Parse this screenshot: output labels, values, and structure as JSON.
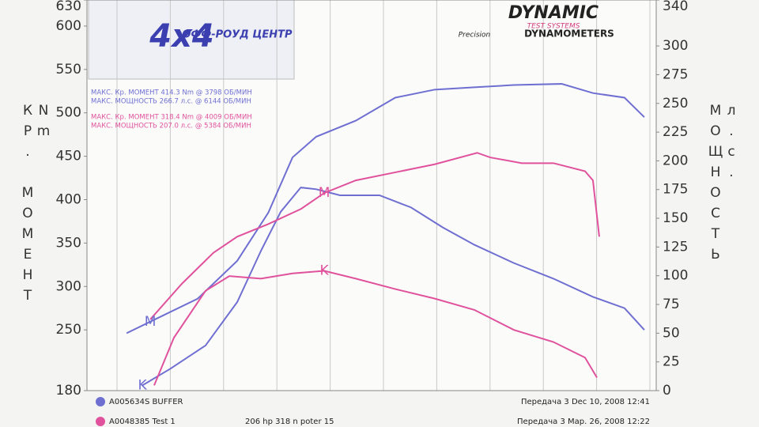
{
  "chart_data": {
    "type": "line",
    "logo_left": {
      "main": "4x4",
      "sub": "ОФФ-РОУД ЦЕНТР"
    },
    "logo_right": {
      "main": "DYNAMIC",
      "sub": "TEST SYSTEMS",
      "script": "Precision",
      "tail": "DYNAMOMETERS"
    },
    "y_label": "КР. МОМЕНТ Nm",
    "y2_label": "МОЩНОСТЬ л.с.",
    "ylim": [
      180,
      630
    ],
    "yticks": [
      180,
      250,
      300,
      350,
      400,
      450,
      500,
      550,
      600,
      630
    ],
    "y2lim": [
      0,
      340
    ],
    "y2ticks": [
      0,
      25,
      50,
      75,
      100,
      125,
      150,
      175,
      200,
      225,
      250,
      275,
      300,
      340
    ],
    "xlim": [
      1876,
      6994
    ],
    "series": [
      {
        "name": "A005634S BUFFER",
        "color": "#6f6fd2",
        "date": "Передача 3 Dec 10, 2008 12:41",
        "info": [
          "МАКС. Кр. МОМЕНТ 414.3 Nm @ 3798 ОБ/МИН",
          "МАКС. МОЩНОСТЬ 266.7 л.с. @ 6144 ОБ/МИН"
        ],
        "torque": {
          "x": [
            2374,
            2623,
            2942,
            3227,
            3440,
            3618,
            3798,
            3937,
            4151,
            4506,
            4790,
            5075,
            5359,
            5714,
            6070,
            6425,
            6709,
            6887
          ],
          "values": [
            186,
            205,
            232,
            282,
            341,
            386,
            414,
            412,
            405,
            405,
            391,
            368,
            348,
            327,
            309,
            288,
            275,
            250
          ]
        },
        "power": {
          "x": [
            2232,
            2445,
            2871,
            3227,
            3507,
            3724,
            3937,
            4293,
            4648,
            5003,
            5359,
            5714,
            6144,
            6425,
            6709,
            6887
          ],
          "values": [
            50,
            60,
            80,
            113,
            155,
            203,
            221,
            235,
            255,
            262,
            264,
            266,
            267,
            259,
            255,
            238
          ]
        }
      },
      {
        "name": "A0048385 Test 1",
        "color": "#e0529c",
        "date": "Передача 3 Мар. 26, 2008 12:22",
        "note": "206 hp 318 n poter 15",
        "info": [
          "МАКС. Кр. МОМЕНТ 318.4 Nm @ 4009 ОБ/МИН",
          "МАКС. МОЩНОСТЬ 207.0 л.с. @ 5384 ОБ/МИН"
        ],
        "torque": {
          "x": [
            2480,
            2658,
            2942,
            3156,
            3440,
            3724,
            4009,
            4293,
            4648,
            5003,
            5359,
            5714,
            6070,
            6354,
            6461
          ],
          "values": [
            186,
            241,
            295,
            312,
            309,
            315,
            318,
            309,
            297,
            286,
            273,
            250,
            236,
            218,
            195
          ]
        },
        "power": {
          "x": [
            2445,
            2729,
            3013,
            3227,
            3507,
            3798,
            4009,
            4293,
            4648,
            5003,
            5384,
            5501,
            5785,
            6070,
            6354,
            6425,
            6482
          ],
          "values": [
            62,
            93,
            120,
            134,
            145,
            158,
            172,
            183,
            190,
            197,
            207,
            203,
            198,
            198,
            191,
            183,
            134
          ]
        }
      }
    ],
    "annotations": [
      {
        "text": "M",
        "x": 2445,
        "y": 60,
        "axis": "y2",
        "color": "#6f6fd2"
      },
      {
        "text": "K",
        "x": 2374,
        "y": 186,
        "axis": "y",
        "color": "#6f6fd2"
      },
      {
        "text": "M",
        "x": 4009,
        "y": 172,
        "axis": "y2",
        "color": "#e0529c"
      },
      {
        "text": "K",
        "x": 4009,
        "y": 318,
        "axis": "y",
        "color": "#e0529c"
      }
    ]
  }
}
